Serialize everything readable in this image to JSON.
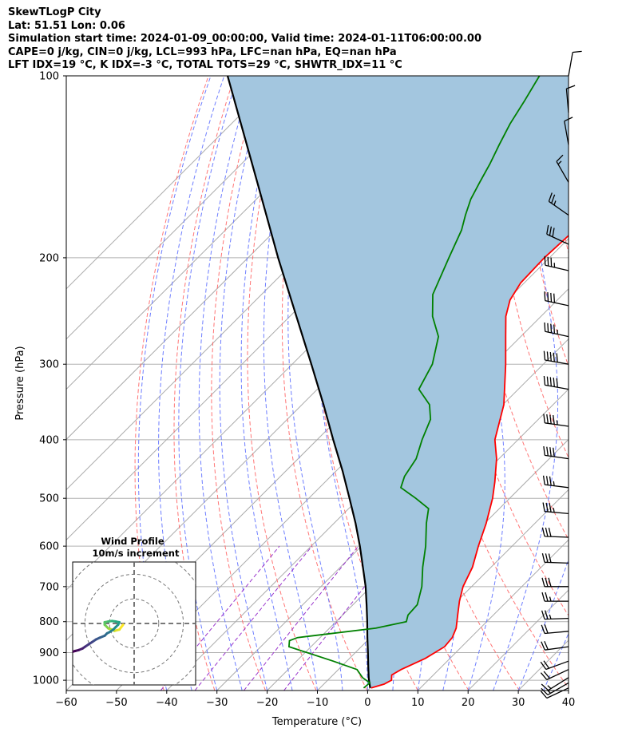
{
  "header": {
    "line1": "SkewTLogP City",
    "line2": "Lat: 51.51   Lon: 0.06",
    "line3": "Simulation start time: 2024-01-09_00:00:00, Valid time: 2024-01-11T06:00:00.00",
    "line4": "CAPE=0 j/kg, CIN=0 j/kg, LCL=993 hPa, LFC=nan hPa, EQ=nan hPa",
    "line5": "LFT IDX=19 °C, K IDX=-3 °C, TOTAL TOTS=29 °C, SHWTR_IDX=11 °C"
  },
  "chart_data": {
    "type": "line",
    "title": "SkewTLogP City",
    "xlabel": "Temperature (°C)",
    "ylabel": "Pressure (hPa)",
    "xlim": [
      -60,
      40
    ],
    "ylim": [
      1040,
      100
    ],
    "y_scale": "log",
    "skew": "skew-T",
    "grid": true,
    "x_ticks": [
      "−60",
      "−50",
      "−40",
      "−30",
      "−20",
      "−10",
      "0",
      "10",
      "20",
      "30",
      "40"
    ],
    "y_ticks": [
      "1000",
      "900",
      "800",
      "700",
      "600",
      "500",
      "400",
      "300",
      "200",
      "100"
    ],
    "colors": {
      "temperature": "#ff0000",
      "dewpoint": "#008000",
      "parcel": "#000000",
      "shading": "#a3c6df",
      "dry_adiabats": "#ff6666",
      "moist_adiabats": "#6677ff",
      "mixing_ratio": "#9933cc",
      "isotherms": "#aaaaaa"
    },
    "series": [
      {
        "key": "temperature",
        "pressure": [
          1030,
          1015,
          1000,
          980,
          960,
          920,
          880,
          850,
          820,
          780,
          740,
          700,
          650,
          600,
          550,
          500,
          470,
          430,
          400,
          350,
          300,
          270,
          250,
          235,
          220,
          200,
          180,
          160,
          150,
          140,
          130,
          120,
          110,
          100
        ],
        "temperature": [
          0.2,
          2.0,
          2.7,
          1.7,
          2.5,
          5.1,
          6.6,
          6.3,
          5.2,
          2.9,
          0.5,
          -1.7,
          -3.7,
          -6.7,
          -9.7,
          -13.4,
          -16.2,
          -20.5,
          -24.6,
          -29.8,
          -37.5,
          -43.0,
          -47.0,
          -49.4,
          -50.7,
          -51.0,
          -50.5,
          -49.8,
          -50.1,
          -52.4,
          -53.9,
          -56.1,
          -59.4,
          -61.8
        ]
      },
      {
        "key": "dewpoint",
        "pressure": [
          1030,
          1010,
          990,
          960,
          930,
          880,
          860,
          850,
          840,
          820,
          800,
          780,
          750,
          700,
          650,
          600,
          550,
          520,
          500,
          480,
          460,
          430,
          400,
          370,
          350,
          330,
          300,
          270,
          250,
          230,
          200,
          180,
          170,
          160,
          150,
          140,
          130,
          120,
          110,
          100
        ],
        "temperature": [
          -1.3,
          -1.1,
          -3.6,
          -6.3,
          -12.7,
          -24.4,
          -25.5,
          -24.5,
          -20.0,
          -10.8,
          -6.0,
          -7.0,
          -7.2,
          -9.9,
          -13.6,
          -17.2,
          -21.6,
          -24.1,
          -28.7,
          -33.8,
          -35.3,
          -36.5,
          -39.1,
          -41.5,
          -44.6,
          -49.8,
          -52.1,
          -56.4,
          -61.6,
          -65.9,
          -70.0,
          -73.0,
          -75.2,
          -77.3,
          -78.9,
          -80.5,
          -82.5,
          -84.5,
          -86.2,
          -88.2
        ]
      },
      {
        "key": "parcel",
        "pressure": [
          1030,
          993,
          950,
          900,
          850,
          800,
          750,
          700,
          650,
          600,
          550,
          500,
          450,
          400,
          350,
          300,
          250,
          200,
          150,
          100
        ],
        "temperature": [
          0.0,
          -2.2,
          -4.6,
          -7.5,
          -10.6,
          -13.8,
          -17.3,
          -21.1,
          -25.5,
          -30.3,
          -35.7,
          -41.9,
          -48.8,
          -56.8,
          -65.7,
          -76.2,
          -88.7,
          -104.0,
          -123.2,
          -150.3
        ]
      }
    ],
    "wind_barbs": {
      "pressure": [
        1030,
        1010,
        990,
        960,
        930,
        880,
        830,
        790,
        740,
        700,
        640,
        580,
        530,
        480,
        430,
        380,
        330,
        300,
        270,
        240,
        210,
        190,
        170,
        150,
        130,
        115,
        100
      ],
      "direction": [
        245,
        240,
        238,
        245,
        250,
        262,
        265,
        268,
        270,
        270,
        272,
        272,
        275,
        277,
        278,
        278,
        280,
        280,
        282,
        282,
        283,
        295,
        305,
        330,
        350,
        355,
        10
      ],
      "speed_kt": [
        10,
        15,
        15,
        20,
        20,
        20,
        20,
        25,
        25,
        30,
        30,
        30,
        35,
        35,
        40,
        45,
        50,
        50,
        45,
        40,
        35,
        30,
        25,
        15,
        10,
        10,
        10
      ]
    },
    "hodograph": {
      "title": "Wind Profile",
      "subtitle": "10m/s increment",
      "ring_step_ms": 10,
      "range_ms": 25,
      "colormap": "viridis",
      "u": [
        -4.5,
        -6.0,
        -8.0,
        -9.0,
        -10.5,
        -11.0,
        -12.0,
        -12.0,
        -10.5,
        -9.0,
        -7.5,
        -6.0,
        -6.5,
        -7.5,
        -8.5,
        -10.0,
        -11.0,
        -12.0,
        -14.0,
        -15.5,
        -17.0,
        -18.5,
        -20.0,
        -21.0,
        -22.5,
        -24.0,
        -25.0
      ],
      "v": [
        -0.5,
        -2.5,
        -3.0,
        -2.5,
        -2.0,
        -1.5,
        -0.5,
        0.5,
        0.8,
        1.0,
        0.8,
        0.5,
        -0.5,
        -1.5,
        -2.5,
        -3.5,
        -4.0,
        -5.0,
        -5.8,
        -6.5,
        -7.5,
        -8.5,
        -9.5,
        -10.2,
        -10.8,
        -11.2,
        -11.5
      ]
    }
  }
}
